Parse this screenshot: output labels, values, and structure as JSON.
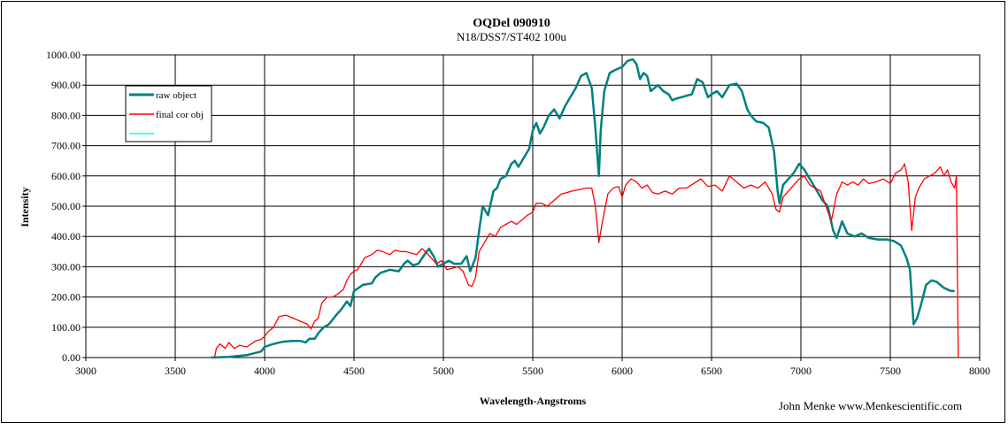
{
  "chart_data": {
    "type": "line",
    "title": "OQDel 090910",
    "subtitle": "N18/DSS7/ST402  100u",
    "xlabel": "Wavelength-Angstroms",
    "ylabel": "Intensity",
    "xlim": [
      3000,
      8000
    ],
    "ylim": [
      0,
      1000
    ],
    "xticks": [
      3000,
      3500,
      4000,
      4500,
      5000,
      5500,
      6000,
      6500,
      7000,
      7500,
      8000
    ],
    "yticks": [
      0,
      100,
      200,
      300,
      400,
      500,
      600,
      700,
      800,
      900,
      1000
    ],
    "ytick_labels": [
      "0.00",
      "100.00",
      "200.00",
      "300.00",
      "400.00",
      "500.00",
      "600.00",
      "700.00",
      "800.00",
      "900.00",
      "1000.00"
    ],
    "grid": true,
    "legend_position": "top-left",
    "series": [
      {
        "name": "raw object",
        "color": "#008080",
        "points": [
          [
            3700,
            0
          ],
          [
            3800,
            2
          ],
          [
            3900,
            8
          ],
          [
            3980,
            20
          ],
          [
            4000,
            35
          ],
          [
            4050,
            45
          ],
          [
            4100,
            52
          ],
          [
            4150,
            55
          ],
          [
            4200,
            55
          ],
          [
            4230,
            50
          ],
          [
            4250,
            62
          ],
          [
            4280,
            62
          ],
          [
            4300,
            80
          ],
          [
            4330,
            100
          ],
          [
            4360,
            110
          ],
          [
            4400,
            140
          ],
          [
            4430,
            160
          ],
          [
            4460,
            185
          ],
          [
            4480,
            170
          ],
          [
            4500,
            220
          ],
          [
            4550,
            240
          ],
          [
            4600,
            245
          ],
          [
            4620,
            265
          ],
          [
            4650,
            280
          ],
          [
            4700,
            290
          ],
          [
            4750,
            285
          ],
          [
            4780,
            310
          ],
          [
            4800,
            320
          ],
          [
            4830,
            305
          ],
          [
            4860,
            310
          ],
          [
            4900,
            345
          ],
          [
            4920,
            360
          ],
          [
            4950,
            330
          ],
          [
            4970,
            300
          ],
          [
            5000,
            310
          ],
          [
            5030,
            320
          ],
          [
            5060,
            310
          ],
          [
            5100,
            310
          ],
          [
            5130,
            335
          ],
          [
            5150,
            285
          ],
          [
            5180,
            330
          ],
          [
            5200,
            420
          ],
          [
            5220,
            500
          ],
          [
            5250,
            470
          ],
          [
            5280,
            550
          ],
          [
            5300,
            560
          ],
          [
            5320,
            590
          ],
          [
            5350,
            600
          ],
          [
            5380,
            640
          ],
          [
            5400,
            650
          ],
          [
            5420,
            630
          ],
          [
            5450,
            660
          ],
          [
            5480,
            690
          ],
          [
            5500,
            750
          ],
          [
            5520,
            775
          ],
          [
            5540,
            740
          ],
          [
            5560,
            760
          ],
          [
            5590,
            800
          ],
          [
            5620,
            820
          ],
          [
            5650,
            790
          ],
          [
            5680,
            830
          ],
          [
            5710,
            860
          ],
          [
            5740,
            890
          ],
          [
            5770,
            930
          ],
          [
            5800,
            940
          ],
          [
            5830,
            890
          ],
          [
            5850,
            760
          ],
          [
            5870,
            600
          ],
          [
            5880,
            750
          ],
          [
            5900,
            880
          ],
          [
            5930,
            940
          ],
          [
            5960,
            950
          ],
          [
            6000,
            960
          ],
          [
            6030,
            980
          ],
          [
            6060,
            985
          ],
          [
            6080,
            970
          ],
          [
            6100,
            920
          ],
          [
            6120,
            940
          ],
          [
            6140,
            930
          ],
          [
            6160,
            880
          ],
          [
            6180,
            890
          ],
          [
            6200,
            900
          ],
          [
            6230,
            880
          ],
          [
            6260,
            870
          ],
          [
            6280,
            850
          ],
          [
            6300,
            855
          ],
          [
            6330,
            860
          ],
          [
            6360,
            865
          ],
          [
            6390,
            870
          ],
          [
            6420,
            920
          ],
          [
            6450,
            910
          ],
          [
            6480,
            860
          ],
          [
            6500,
            870
          ],
          [
            6530,
            880
          ],
          [
            6560,
            860
          ],
          [
            6600,
            900
          ],
          [
            6640,
            905
          ],
          [
            6670,
            880
          ],
          [
            6700,
            820
          ],
          [
            6720,
            800
          ],
          [
            6750,
            780
          ],
          [
            6790,
            775
          ],
          [
            6820,
            760
          ],
          [
            6850,
            680
          ],
          [
            6870,
            550
          ],
          [
            6880,
            510
          ],
          [
            6900,
            570
          ],
          [
            6930,
            590
          ],
          [
            6960,
            610
          ],
          [
            6990,
            640
          ],
          [
            7020,
            620
          ],
          [
            7050,
            590
          ],
          [
            7080,
            560
          ],
          [
            7120,
            520
          ],
          [
            7150,
            500
          ],
          [
            7180,
            420
          ],
          [
            7200,
            395
          ],
          [
            7230,
            450
          ],
          [
            7260,
            410
          ],
          [
            7300,
            400
          ],
          [
            7340,
            410
          ],
          [
            7380,
            395
          ],
          [
            7430,
            390
          ],
          [
            7480,
            390
          ],
          [
            7520,
            385
          ],
          [
            7560,
            370
          ],
          [
            7590,
            330
          ],
          [
            7610,
            290
          ],
          [
            7630,
            110
          ],
          [
            7650,
            130
          ],
          [
            7670,
            170
          ],
          [
            7700,
            240
          ],
          [
            7730,
            255
          ],
          [
            7760,
            250
          ],
          [
            7800,
            230
          ],
          [
            7840,
            220
          ],
          [
            7860,
            220
          ]
        ]
      },
      {
        "name": "final cor obj",
        "color": "#ff0000",
        "points": [
          [
            3720,
            0
          ],
          [
            3730,
            30
          ],
          [
            3750,
            45
          ],
          [
            3780,
            30
          ],
          [
            3800,
            50
          ],
          [
            3830,
            30
          ],
          [
            3860,
            40
          ],
          [
            3900,
            35
          ],
          [
            3950,
            55
          ],
          [
            3980,
            60
          ],
          [
            4000,
            70
          ],
          [
            4020,
            85
          ],
          [
            4050,
            100
          ],
          [
            4080,
            135
          ],
          [
            4120,
            140
          ],
          [
            4160,
            130
          ],
          [
            4200,
            120
          ],
          [
            4240,
            110
          ],
          [
            4260,
            95
          ],
          [
            4280,
            120
          ],
          [
            4300,
            130
          ],
          [
            4320,
            180
          ],
          [
            4350,
            200
          ],
          [
            4380,
            200
          ],
          [
            4410,
            210
          ],
          [
            4440,
            225
          ],
          [
            4460,
            255
          ],
          [
            4480,
            275
          ],
          [
            4500,
            285
          ],
          [
            4520,
            290
          ],
          [
            4540,
            310
          ],
          [
            4560,
            330
          ],
          [
            4600,
            340
          ],
          [
            4630,
            355
          ],
          [
            4660,
            350
          ],
          [
            4700,
            340
          ],
          [
            4730,
            355
          ],
          [
            4760,
            350
          ],
          [
            4790,
            350
          ],
          [
            4820,
            345
          ],
          [
            4850,
            340
          ],
          [
            4880,
            360
          ],
          [
            4900,
            350
          ],
          [
            4930,
            330
          ],
          [
            4960,
            310
          ],
          [
            4990,
            320
          ],
          [
            5020,
            290
          ],
          [
            5050,
            295
          ],
          [
            5080,
            300
          ],
          [
            5110,
            285
          ],
          [
            5140,
            240
          ],
          [
            5160,
            235
          ],
          [
            5180,
            265
          ],
          [
            5200,
            350
          ],
          [
            5230,
            380
          ],
          [
            5260,
            410
          ],
          [
            5290,
            400
          ],
          [
            5320,
            430
          ],
          [
            5350,
            440
          ],
          [
            5380,
            450
          ],
          [
            5410,
            440
          ],
          [
            5440,
            455
          ],
          [
            5470,
            470
          ],
          [
            5500,
            480
          ],
          [
            5520,
            510
          ],
          [
            5550,
            510
          ],
          [
            5580,
            500
          ],
          [
            5610,
            515
          ],
          [
            5640,
            530
          ],
          [
            5660,
            540
          ],
          [
            5690,
            545
          ],
          [
            5720,
            550
          ],
          [
            5760,
            555
          ],
          [
            5800,
            560
          ],
          [
            5830,
            560
          ],
          [
            5850,
            500
          ],
          [
            5870,
            380
          ],
          [
            5890,
            450
          ],
          [
            5920,
            540
          ],
          [
            5950,
            560
          ],
          [
            5980,
            565
          ],
          [
            6000,
            530
          ],
          [
            6020,
            570
          ],
          [
            6050,
            590
          ],
          [
            6080,
            580
          ],
          [
            6110,
            560
          ],
          [
            6140,
            570
          ],
          [
            6170,
            545
          ],
          [
            6200,
            540
          ],
          [
            6240,
            550
          ],
          [
            6280,
            540
          ],
          [
            6320,
            560
          ],
          [
            6360,
            560
          ],
          [
            6400,
            575
          ],
          [
            6440,
            590
          ],
          [
            6480,
            565
          ],
          [
            6520,
            570
          ],
          [
            6560,
            550
          ],
          [
            6600,
            600
          ],
          [
            6640,
            580
          ],
          [
            6680,
            560
          ],
          [
            6720,
            570
          ],
          [
            6760,
            560
          ],
          [
            6800,
            580
          ],
          [
            6840,
            540
          ],
          [
            6860,
            490
          ],
          [
            6880,
            480
          ],
          [
            6900,
            530
          ],
          [
            6930,
            550
          ],
          [
            6960,
            570
          ],
          [
            6990,
            590
          ],
          [
            7020,
            600
          ],
          [
            7050,
            570
          ],
          [
            7080,
            560
          ],
          [
            7110,
            550
          ],
          [
            7140,
            500
          ],
          [
            7170,
            450
          ],
          [
            7200,
            540
          ],
          [
            7230,
            580
          ],
          [
            7260,
            570
          ],
          [
            7290,
            580
          ],
          [
            7320,
            570
          ],
          [
            7350,
            590
          ],
          [
            7380,
            575
          ],
          [
            7420,
            580
          ],
          [
            7460,
            590
          ],
          [
            7500,
            575
          ],
          [
            7530,
            610
          ],
          [
            7560,
            620
          ],
          [
            7580,
            640
          ],
          [
            7600,
            580
          ],
          [
            7620,
            420
          ],
          [
            7640,
            530
          ],
          [
            7660,
            560
          ],
          [
            7690,
            590
          ],
          [
            7720,
            600
          ],
          [
            7750,
            610
          ],
          [
            7780,
            630
          ],
          [
            7800,
            600
          ],
          [
            7820,
            620
          ],
          [
            7840,
            580
          ],
          [
            7860,
            560
          ],
          [
            7870,
            600
          ],
          [
            7880,
            0
          ]
        ]
      },
      {
        "name": "",
        "color": "#00ffff",
        "points": []
      }
    ]
  },
  "credit": "John Menke www.Menkescientific.com"
}
